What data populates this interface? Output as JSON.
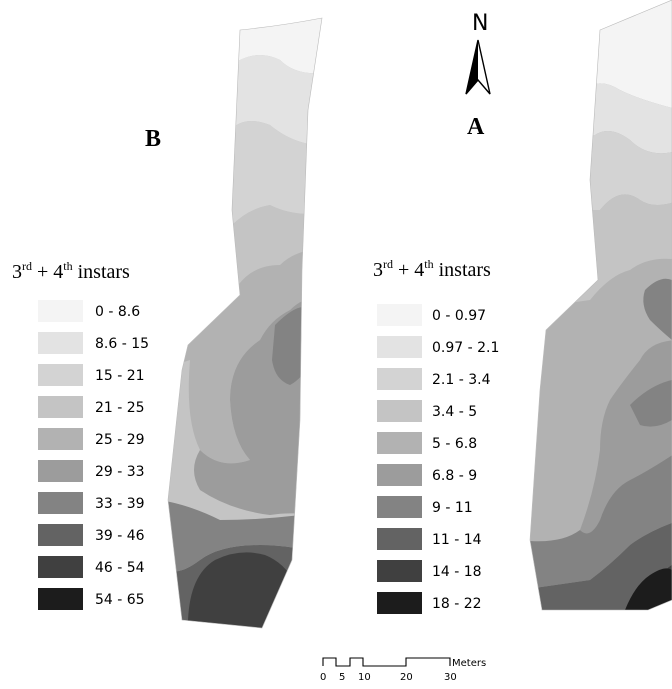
{
  "panels": [
    {
      "label": "B",
      "legend_title": {
        "main_1": "3",
        "sup_1": "rd",
        "main_2": " + 4",
        "sup_2": "th",
        "main_3": " instars"
      },
      "classes": [
        {
          "range": "0 - 8.6",
          "color": "#f4f4f4"
        },
        {
          "range": "8.6 - 15",
          "color": "#e3e3e3"
        },
        {
          "range": "15 - 21",
          "color": "#d3d3d3"
        },
        {
          "range": "21 - 25",
          "color": "#c4c4c4"
        },
        {
          "range": "25 - 29",
          "color": "#b2b2b2"
        },
        {
          "range": "29 - 33",
          "color": "#9c9c9c"
        },
        {
          "range": "33 - 39",
          "color": "#838383"
        },
        {
          "range": "39 - 46",
          "color": "#636363"
        },
        {
          "range": "46 - 54",
          "color": "#404040"
        },
        {
          "range": "54 - 65",
          "color": "#1c1c1c"
        }
      ]
    },
    {
      "label": "A",
      "legend_title": {
        "main_1": "3",
        "sup_1": "rd",
        "main_2": " + 4",
        "sup_2": "th",
        "main_3": " instars"
      },
      "classes": [
        {
          "range": "0 - 0.97",
          "color": "#f4f4f4"
        },
        {
          "range": "0.97 - 2.1",
          "color": "#e3e3e3"
        },
        {
          "range": "2.1 - 3.4",
          "color": "#d3d3d3"
        },
        {
          "range": "3.4 - 5",
          "color": "#c4c4c4"
        },
        {
          "range": "5 - 6.8",
          "color": "#b2b2b2"
        },
        {
          "range": "6.8 - 9",
          "color": "#9c9c9c"
        },
        {
          "range": "9 - 11",
          "color": "#838383"
        },
        {
          "range": "11 - 14",
          "color": "#636363"
        },
        {
          "range": "14 - 18",
          "color": "#404040"
        },
        {
          "range": "18 - 22",
          "color": "#1c1c1c"
        }
      ]
    }
  ],
  "north_arrow": {
    "label": "N"
  },
  "scale_bar": {
    "unit": "Meters",
    "ticks": [
      "0",
      "5",
      "10",
      "20",
      "30"
    ]
  }
}
